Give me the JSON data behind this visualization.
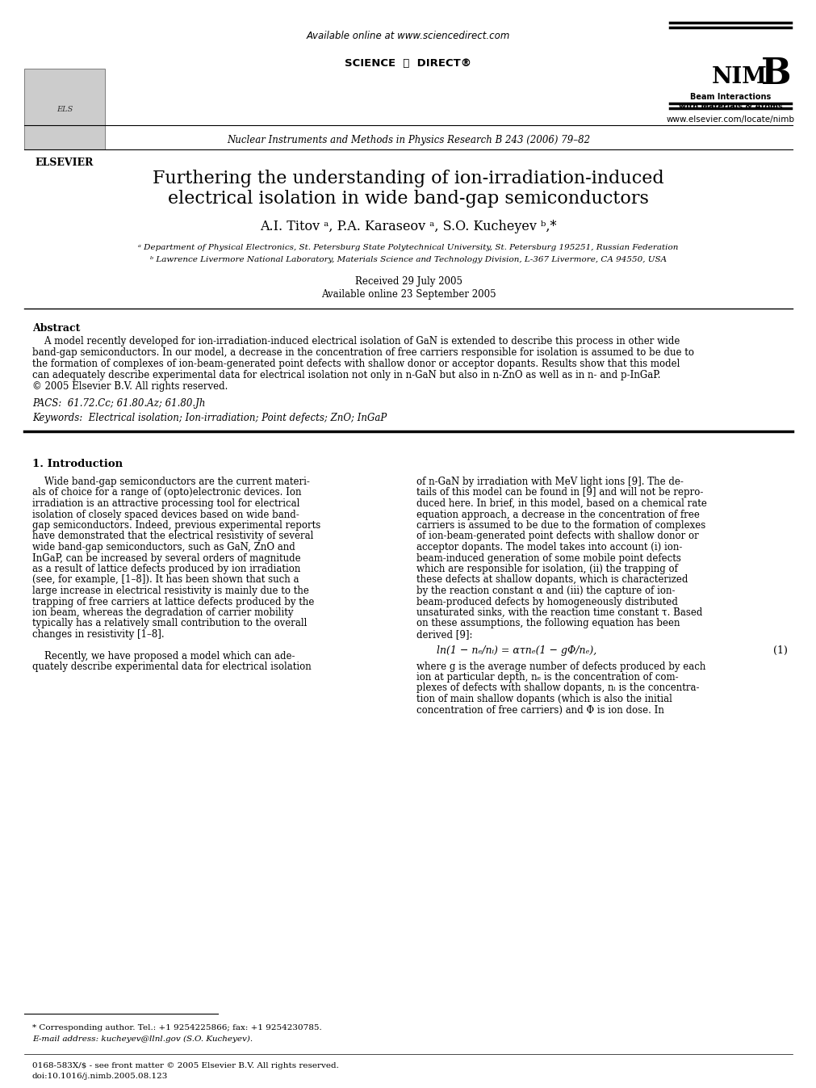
{
  "bg_color": "#ffffff",
  "title_line1": "Furthering the understanding of ion-irradiation-induced",
  "title_line2": "electrical isolation in wide band-gap semiconductors",
  "authors": "A.I. Titov ᵃ, P.A. Karaseov ᵃ, S.O. Kucheyev ᵇ,*",
  "affil_a": "ᵃ Department of Physical Electronics, St. Petersburg State Polytechnical University, St. Petersburg 195251, Russian Federation",
  "affil_b": "ᵇ Lawrence Livermore National Laboratory, Materials Science and Technology Division, L-367 Livermore, CA 94550, USA",
  "received": "Received 29 July 2005",
  "available": "Available online 23 September 2005",
  "journal_header": "Nuclear Instruments and Methods in Physics Research B 243 (2006) 79–82",
  "online_text": "Available online at www.sciencedirect.com",
  "website": "www.elsevier.com/locate/nimb",
  "elsevier": "ELSEVIER",
  "abstract_title": "Abstract",
  "pacs": "PACS:  61.72.Cc; 61.80.Az; 61.80.Jh",
  "keywords": "Keywords:  Electrical isolation; Ion-irradiation; Point defects; ZnO; InGaP",
  "section1_title": "1. Introduction",
  "equation": "ln(1 − nₑ/nᵢ) = ατnₑ(1 − gΦ/nₑ),",
  "eq_number": "(1)",
  "footnote_star": "* Corresponding author. Tel.: +1 9254225866; fax: +1 9254230785.",
  "footnote_email": "E-mail address: kucheyev@llnl.gov (S.O. Kucheyev).",
  "footer_left": "0168-583X/$ - see front matter © 2005 Elsevier B.V. All rights reserved.",
  "footer_doi": "doi:10.1016/j.nimb.2005.08.123",
  "abstract_lines": [
    "    A model recently developed for ion-irradiation-induced electrical isolation of GaN is extended to describe this process in other wide",
    "band-gap semiconductors. In our model, a decrease in the concentration of free carriers responsible for isolation is assumed to be due to",
    "the formation of complexes of ion-beam-generated point defects with shallow donor or acceptor dopants. Results show that this model",
    "can adequately describe experimental data for electrical isolation not only in n-GaN but also in n-ZnO as well as in n- and p-InGaP.",
    "© 2005 Elsevier B.V. All rights reserved."
  ],
  "left_paragraphs": [
    "    Wide band-gap semiconductors are the current materi-",
    "als of choice for a range of (opto)electronic devices. Ion",
    "irradiation is an attractive processing tool for electrical",
    "isolation of closely spaced devices based on wide band-",
    "gap semiconductors. Indeed, previous experimental reports",
    "have demonstrated that the electrical resistivity of several",
    "wide band-gap semiconductors, such as GaN, ZnO and",
    "InGaP, can be increased by several orders of magnitude",
    "as a result of lattice defects produced by ion irradiation",
    "(see, for example, [1–8]). It has been shown that such a",
    "large increase in electrical resistivity is mainly due to the",
    "trapping of free carriers at lattice defects produced by the",
    "ion beam, whereas the degradation of carrier mobility",
    "typically has a relatively small contribution to the overall",
    "changes in resistivity [1–8].",
    "",
    "    Recently, we have proposed a model which can ade-",
    "quately describe experimental data for electrical isolation"
  ],
  "right_paragraphs": [
    "of n-GaN by irradiation with MeV light ions [9]. The de-",
    "tails of this model can be found in [9] and will not be repro-",
    "duced here. In brief, in this model, based on a chemical rate",
    "equation approach, a decrease in the concentration of free",
    "carriers is assumed to be due to the formation of complexes",
    "of ion-beam-generated point defects with shallow donor or",
    "acceptor dopants. The model takes into account (i) ion-",
    "beam-induced generation of some mobile point defects",
    "which are responsible for isolation, (ii) the trapping of",
    "these defects at shallow dopants, which is characterized",
    "by the reaction constant α and (iii) the capture of ion-",
    "beam-produced defects by homogeneously distributed",
    "unsaturated sinks, with the reaction time constant τ. Based",
    "on these assumptions, the following equation has been",
    "derived [9]:"
  ],
  "eq_desc_lines": [
    "where g is the average number of defects produced by each",
    "ion at particular depth, nₑ is the concentration of com-",
    "plexes of defects with shallow dopants, nᵢ is the concentra-",
    "tion of main shallow dopants (which is also the initial",
    "concentration of free carriers) and Φ is ion dose. In"
  ]
}
